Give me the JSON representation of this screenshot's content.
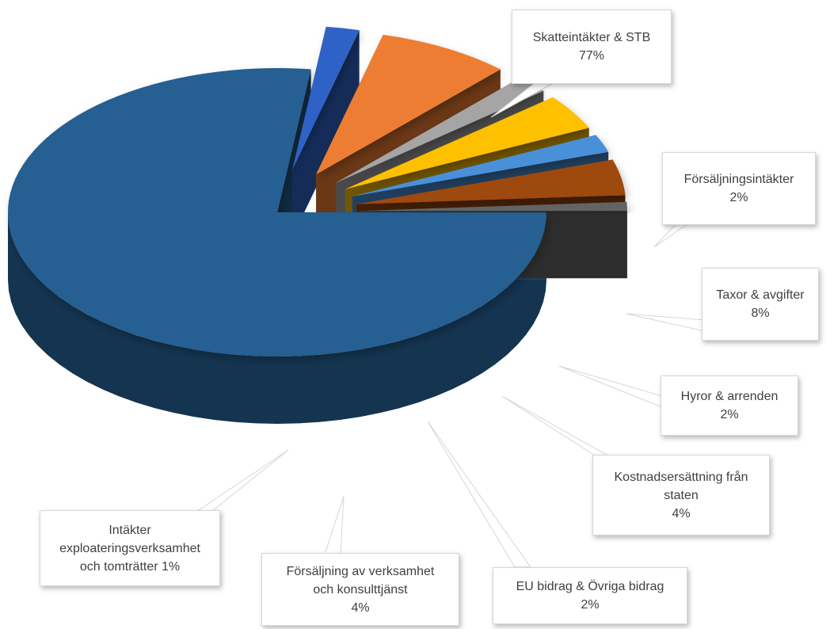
{
  "chart_data": {
    "type": "pie",
    "style": "3d-exploded",
    "legend": "none",
    "slices": [
      {
        "label": "Skatteintäkter & STB",
        "value": 77,
        "display": "77%",
        "color": "#255e91"
      },
      {
        "label": "Försäljningsintäkter",
        "value": 2,
        "display": "2%",
        "color": "#2e62c6"
      },
      {
        "label": "Taxor & avgifter",
        "value": 8,
        "display": "8%",
        "color": "#ed7d31"
      },
      {
        "label": "Hyror & arrenden",
        "value": 2,
        "display": "2%",
        "color": "#a5a5a5"
      },
      {
        "label": "Kostnadsersättning från staten",
        "value": 4,
        "display": "4%",
        "color": "#ffc000"
      },
      {
        "label": "EU bidrag & Övriga bidrag",
        "value": 2,
        "display": "2%",
        "color": "#4a90d9"
      },
      {
        "label": "Försäljning av verksamhet och konsulttjänst",
        "value": 4,
        "display": "4%",
        "color": "#9e480e"
      },
      {
        "label": "Intäkter exploateringsverksamhet och tomträtter",
        "value": 1,
        "display": "1%",
        "color": "#636363"
      }
    ],
    "callouts": [
      {
        "lines": [
          "Skatteintäkter & STB",
          "77%"
        ]
      },
      {
        "lines": [
          "Försäljningsintäkter",
          "2%"
        ]
      },
      {
        "lines": [
          "Taxor & avgifter",
          "8%"
        ]
      },
      {
        "lines": [
          "Hyror & arrenden",
          "2%"
        ]
      },
      {
        "lines": [
          "Kostnadsersättning från",
          "staten",
          "4%"
        ]
      },
      {
        "lines": [
          "EU bidrag & Övriga bidrag",
          "2%"
        ]
      },
      {
        "lines": [
          "Försäljning av verksamhet",
          "och konsulttjänst",
          "4%"
        ]
      },
      {
        "lines": [
          "Intäkter",
          "exploateringsverksamhet",
          "och tomträtter 1%"
        ]
      }
    ]
  }
}
